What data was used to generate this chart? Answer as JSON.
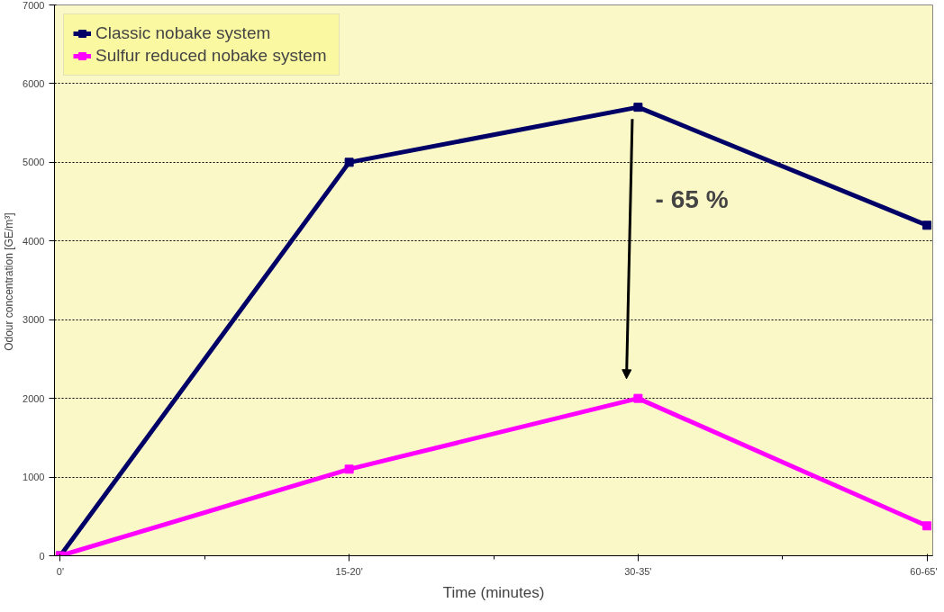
{
  "chart_data": {
    "type": "line",
    "xlabel": "Time (minutes)",
    "ylabel": "Odour concentration  [GE/m³]",
    "categories": [
      "0'",
      "15-20'",
      "30-35'",
      "60-65'"
    ],
    "series": [
      {
        "name": "Classic nobake system",
        "color": "#000066",
        "values": [
          0,
          5000,
          5700,
          4200
        ]
      },
      {
        "name": "Sulfur reduced nobake system",
        "color": "#ff00ff",
        "values": [
          0,
          1100,
          2000,
          380
        ]
      }
    ],
    "ylim": [
      0,
      7000
    ],
    "yticks": [
      0,
      1000,
      2000,
      3000,
      4000,
      5000,
      6000,
      7000
    ],
    "grid": "y",
    "legend": "top left",
    "marker": "square",
    "line_style": "solid",
    "annotations": [
      "- 65 %"
    ]
  }
}
